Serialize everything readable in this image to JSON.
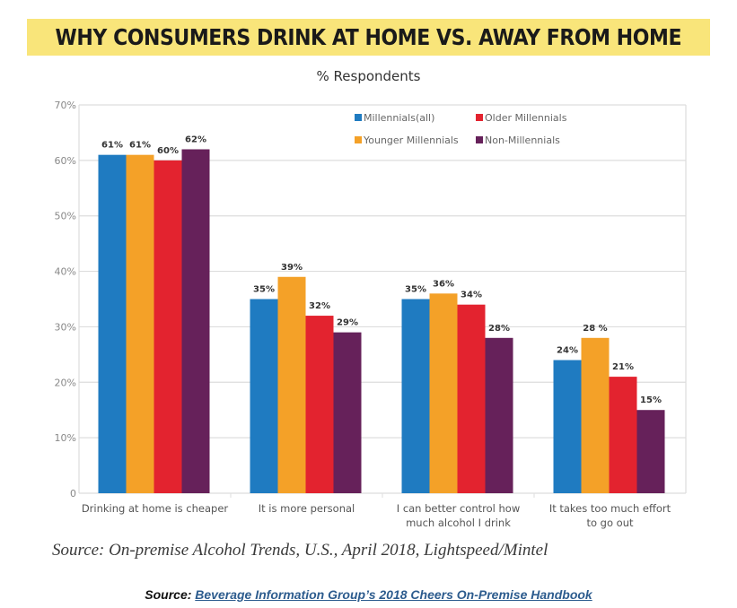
{
  "colors": {
    "title_band": "#f9e57a",
    "series": [
      "#1f7bc1",
      "#f4a128",
      "#e3232f",
      "#66215a"
    ],
    "grid": "#dddddd",
    "axis_text": "#888888",
    "label_text": "#333333"
  },
  "chart_data": {
    "type": "bar",
    "title": "WHY CONSUMERS DRINK AT HOME VS. AWAY FROM HOME",
    "subtitle": "% Respondents",
    "xlabel": "",
    "ylabel": "",
    "ylim": [
      0,
      70
    ],
    "yticks": [
      0,
      10,
      20,
      30,
      40,
      50,
      60,
      70
    ],
    "ytick_labels": [
      "0",
      "10%",
      "20%",
      "30%",
      "40%",
      "50%",
      "60%",
      "70%"
    ],
    "grid": true,
    "legend_position": "top-right",
    "categories": [
      [
        "Drinking at home is cheaper"
      ],
      [
        "It is more personal"
      ],
      [
        "I can better control how",
        "much alcohol I drink"
      ],
      [
        "It takes too much effort",
        "to go out"
      ]
    ],
    "series": [
      {
        "name": "Millennials(all)",
        "values": [
          61,
          35,
          35,
          24
        ],
        "labels": [
          "61%",
          "35%",
          "35%",
          "24%"
        ]
      },
      {
        "name": "Younger Millennials",
        "values": [
          61,
          39,
          36,
          28
        ],
        "labels": [
          "61%",
          "39%",
          "36%",
          "28 %"
        ]
      },
      {
        "name": "Older Millennials",
        "values": [
          60,
          32,
          34,
          21
        ],
        "labels": [
          "60%",
          "32%",
          "34%",
          "21%"
        ]
      },
      {
        "name": "Non-Millennials",
        "values": [
          62,
          29,
          28,
          15
        ],
        "labels": [
          "62%",
          "29%",
          "28%",
          "15%"
        ]
      }
    ],
    "legend_order": [
      [
        "Millennials(all)",
        "Older Millennials"
      ],
      [
        "Younger Millennials",
        "Non-Millennials"
      ]
    ]
  },
  "footer": {
    "source_note": "Source: On-premise Alcohol Trends, U.S., April 2018, Lightspeed/Mintel",
    "source_prefix": "Source:",
    "source_link": "Beverage Information Group’s 2018 Cheers On-Premise Handbook"
  }
}
